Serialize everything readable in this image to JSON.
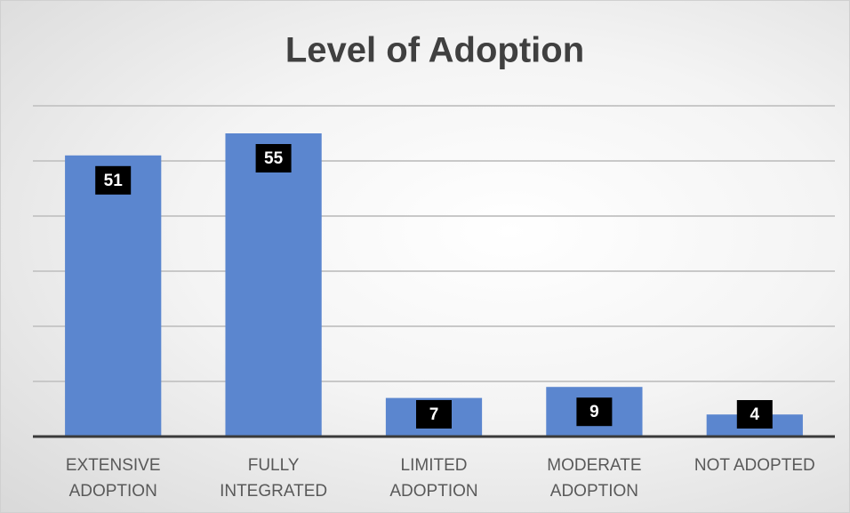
{
  "chart_data": {
    "type": "bar",
    "title": "Level of Adoption",
    "categories": [
      "EXTENSIVE ADOPTION",
      "FULLY INTEGRATED",
      "LIMITED ADOPTION",
      "MODERATE ADOPTION",
      "NOT ADOPTED"
    ],
    "values": [
      51,
      55,
      7,
      9,
      4
    ],
    "color": "#5b86cf",
    "ylim": [
      0,
      60
    ],
    "yticks": [
      0,
      10,
      20,
      30,
      40,
      50,
      60
    ],
    "grid": true
  }
}
